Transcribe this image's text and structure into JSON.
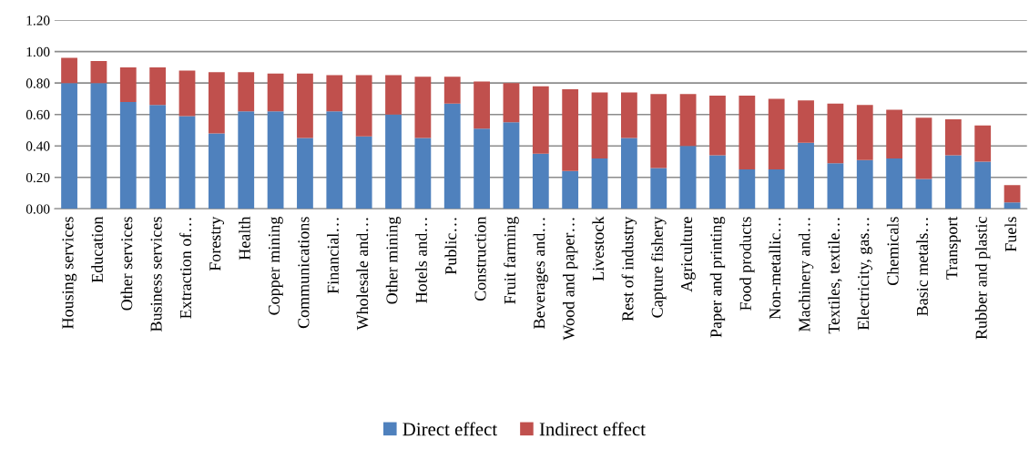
{
  "chart_data": {
    "type": "bar",
    "stacked": true,
    "categories": [
      "Housing services",
      "Education",
      "Other services",
      "Business services",
      "Extraction of…",
      "Forestry",
      "Health",
      "Copper mining",
      "Communications",
      "Financial…",
      "Wholesale and…",
      "Other mining",
      "Hotels and…",
      "Public…",
      "Construction",
      "Fruit farming",
      "Beverages and…",
      "Wood and paper…",
      "Livestock",
      "Rest of industry",
      "Capture fishery",
      "Agriculture",
      "Paper and printing",
      "Food products",
      "Non-metallic…",
      "Machinery and…",
      "Textiles, textile…",
      "Electricity, gas…",
      "Chemicals",
      "Basic metals…",
      "Transport",
      "Rubber and plastic",
      "Fuels"
    ],
    "series": [
      {
        "name": "Direct effect",
        "color": "#4f81bd",
        "values": [
          0.8,
          0.8,
          0.68,
          0.66,
          0.59,
          0.48,
          0.62,
          0.62,
          0.45,
          0.62,
          0.46,
          0.6,
          0.45,
          0.67,
          0.51,
          0.55,
          0.35,
          0.24,
          0.32,
          0.45,
          0.26,
          0.4,
          0.34,
          0.25,
          0.25,
          0.42,
          0.29,
          0.31,
          0.32,
          0.19,
          0.34,
          0.3,
          0.04
        ]
      },
      {
        "name": "Indirect effect",
        "color": "#c0504d",
        "values": [
          0.16,
          0.14,
          0.22,
          0.24,
          0.29,
          0.39,
          0.25,
          0.24,
          0.41,
          0.23,
          0.39,
          0.25,
          0.39,
          0.17,
          0.3,
          0.25,
          0.43,
          0.52,
          0.42,
          0.29,
          0.47,
          0.33,
          0.38,
          0.47,
          0.45,
          0.27,
          0.38,
          0.35,
          0.31,
          0.39,
          0.23,
          0.23,
          0.11
        ]
      }
    ],
    "ylim": [
      0,
      1.2
    ],
    "yticks": [
      {
        "value": 0,
        "label": "0.00"
      },
      {
        "value": 0.2,
        "label": "0.20"
      },
      {
        "value": 0.4,
        "label": "0.40"
      },
      {
        "value": 0.6,
        "label": "0.60"
      },
      {
        "value": 0.8,
        "label": "0.80"
      },
      {
        "value": 1.0,
        "label": "1.00"
      },
      {
        "value": 1.2,
        "label": "1.20"
      }
    ],
    "grid": "y",
    "legend": "bottom"
  }
}
